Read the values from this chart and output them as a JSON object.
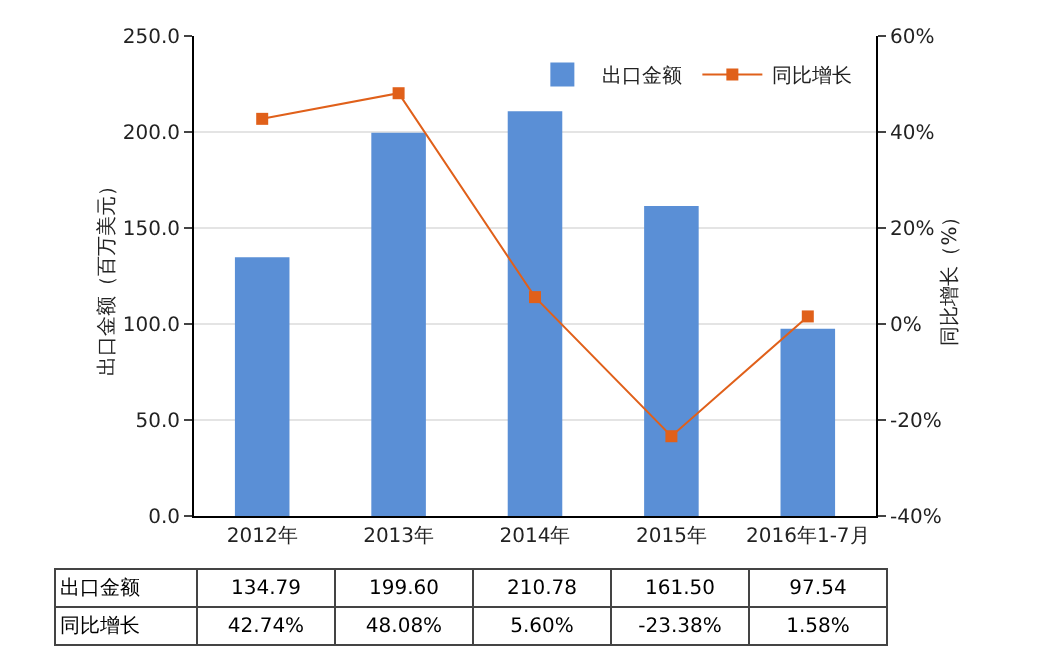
{
  "chart_data": {
    "type": "bar",
    "categories": [
      "2012年",
      "2013年",
      "2014年",
      "2015年",
      "2016年1-7月"
    ],
    "series": [
      {
        "name": "出口金额",
        "color": "#5a8fd6",
        "values": [
          134.79,
          199.6,
          210.78,
          161.5,
          97.54
        ],
        "value_labels": [
          "134.79",
          "199.60",
          "210.78",
          "161.50",
          "97.54"
        ]
      },
      {
        "name": "同比增长",
        "type": "line",
        "axis": "y2",
        "color": "#e0601a",
        "values": [
          42.74,
          48.08,
          5.6,
          -23.38,
          1.58
        ],
        "value_labels": [
          "42.74%",
          "48.08%",
          "5.60%",
          "-23.38%",
          "1.58%"
        ]
      }
    ],
    "ylabel": "出口金额（百万美元）",
    "y2label": "同比增长（%）",
    "ylim": [
      0,
      250
    ],
    "yticks": [
      {
        "value": 0,
        "label": "0.0"
      },
      {
        "value": 50,
        "label": "50.0"
      },
      {
        "value": 100,
        "label": "100.0"
      },
      {
        "value": 150,
        "label": "150.0"
      },
      {
        "value": 200,
        "label": "200.0"
      },
      {
        "value": 250,
        "label": "250.0"
      }
    ],
    "y2lim": [
      -40,
      60
    ],
    "y2ticks": [
      {
        "value": -40,
        "label": "-40%"
      },
      {
        "value": -20,
        "label": "-20%"
      },
      {
        "value": 0,
        "label": "0%"
      },
      {
        "value": 20,
        "label": "20%"
      },
      {
        "value": 40,
        "label": "40%"
      },
      {
        "value": 60,
        "label": "60%"
      }
    ],
    "grid": "y",
    "legend": "top right",
    "marker": "square",
    "line_style": "solid"
  }
}
